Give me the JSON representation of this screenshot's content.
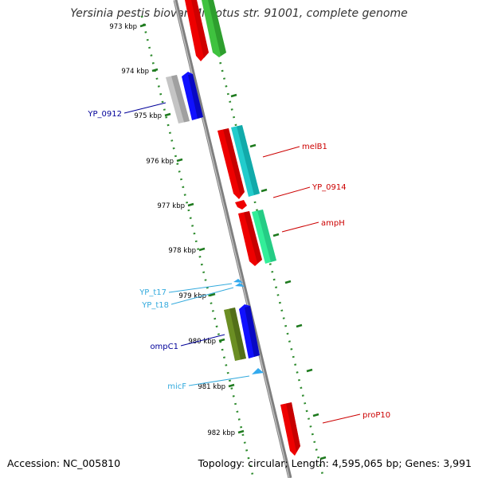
{
  "title": "Yersinia pestis biovar Microtus str. 91001, complete genome",
  "accession": "Accession: NC_005810",
  "summary": "Topology: circular; Length: 4,595,065 bp; Genes: 3,991",
  "colors": {
    "backbone": "#808080",
    "ruler_ticks": "#1e7a1e",
    "red": "#ff0000",
    "green": "#33cc33",
    "cyan": "#00cccc",
    "aquamarine": "#22ee99",
    "grey": "#bbbbbb",
    "blue": "#0000ff",
    "olive": "#6b8e23",
    "trna": "#33aaee"
  },
  "ruler": [
    {
      "label": "973 kbp"
    },
    {
      "label": "974 kbp"
    },
    {
      "label": "975 kbp"
    },
    {
      "label": "976 kbp"
    },
    {
      "label": "977 kbp"
    },
    {
      "label": "978 kbp"
    },
    {
      "label": "979 kbp"
    },
    {
      "label": "980 kbp"
    },
    {
      "label": "981 kbp"
    },
    {
      "label": "982 kbp"
    }
  ],
  "genes": [
    {
      "name": "YP_0912",
      "color": "#000099"
    },
    {
      "name": "melB1",
      "color": "#cc0000"
    },
    {
      "name": "YP_0914",
      "color": "#cc0000"
    },
    {
      "name": "ampH",
      "color": "#cc0000"
    },
    {
      "name": "YP_t17",
      "color": "#33aadd"
    },
    {
      "name": "YP_t18",
      "color": "#33aadd"
    },
    {
      "name": "ompC1",
      "color": "#000099"
    },
    {
      "name": "micF",
      "color": "#33aadd"
    },
    {
      "name": "proP10",
      "color": "#cc0000"
    }
  ]
}
